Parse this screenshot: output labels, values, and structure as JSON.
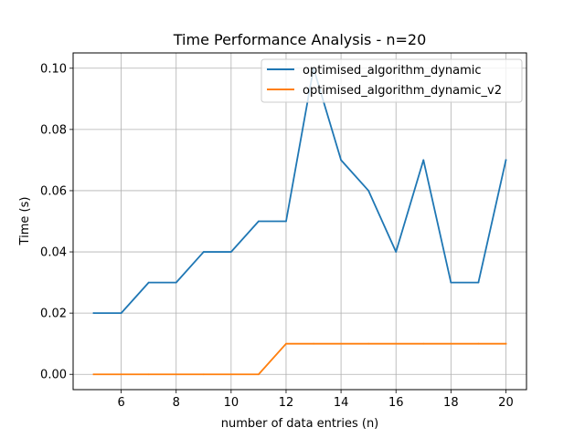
{
  "chart_data": {
    "type": "line",
    "title": "Time Performance Analysis - n=20",
    "xlabel": "number of data entries (n)",
    "ylabel": "Time (s)",
    "x": [
      5,
      6,
      7,
      8,
      9,
      10,
      11,
      12,
      13,
      14,
      15,
      16,
      17,
      18,
      19,
      20
    ],
    "xlim": [
      4.25,
      20.75
    ],
    "ylim": [
      -0.005,
      0.105
    ],
    "x_ticks": [
      6,
      8,
      10,
      12,
      14,
      16,
      18,
      20
    ],
    "y_ticks": [
      0.0,
      0.02,
      0.04,
      0.06,
      0.08,
      0.1
    ],
    "x_tick_labels": [
      "6",
      "8",
      "10",
      "12",
      "14",
      "16",
      "18",
      "20"
    ],
    "y_tick_labels": [
      "0.00",
      "0.02",
      "0.04",
      "0.06",
      "0.08",
      "0.10"
    ],
    "grid": true,
    "legend_position": "top-right",
    "series": [
      {
        "name": "optimised_algorithm_dynamic",
        "color": "#1f77b4",
        "values": [
          0.02,
          0.02,
          0.03,
          0.03,
          0.04,
          0.04,
          0.05,
          0.05,
          0.1,
          0.07,
          0.06,
          0.04,
          0.07,
          0.03,
          0.03,
          0.07
        ]
      },
      {
        "name": "optimised_algorithm_dynamic_v2",
        "color": "#ff7f0e",
        "values": [
          0.0,
          0.0,
          0.0,
          0.0,
          0.0,
          0.0,
          0.0,
          0.01,
          0.01,
          0.01,
          0.01,
          0.01,
          0.01,
          0.01,
          0.01,
          0.01
        ]
      }
    ]
  }
}
